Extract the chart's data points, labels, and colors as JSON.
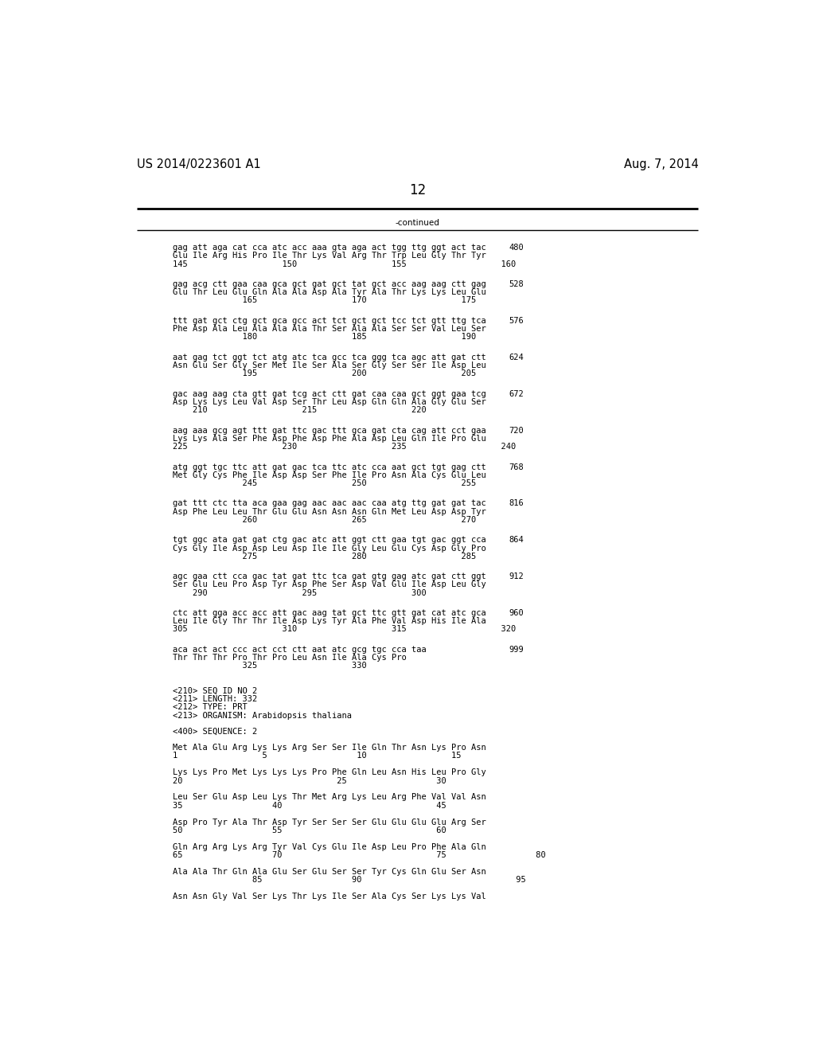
{
  "header_left": "US 2014/0223601 A1",
  "header_right": "Aug. 7, 2014",
  "page_number": "12",
  "continued_label": "-continued",
  "background_color": "#ffffff",
  "text_color": "#000000",
  "font_size": 7.5,
  "header_font_size": 10.5,
  "page_num_font_size": 12,
  "content_blocks": [
    {
      "dna": "gag att aga cat cca atc acc aaa gta aga act tgg ttg ggt act tac",
      "aa": "Glu Ile Arg His Pro Ile Thr Lys Val Arg Thr Trp Leu Gly Thr Tyr",
      "num": "145                   150                   155                   160",
      "idx": "480"
    },
    {
      "dna": "gag acg ctt gaa caa gca gct gat gct tat gct acc aag aag ctt gag",
      "aa": "Glu Thr Leu Glu Gln Ala Ala Asp Ala Tyr Ala Thr Lys Lys Leu Glu",
      "num": "              165                   170                   175",
      "idx": "528"
    },
    {
      "dna": "ttt gat gct ctg gct gca gcc act tct gct gct tcc tct gtt ttg tca",
      "aa": "Phe Asp Ala Leu Ala Ala Ala Thr Ser Ala Ala Ser Ser Val Leu Ser",
      "num": "              180                   185                   190",
      "idx": "576"
    },
    {
      "dna": "aat gag tct ggt tct atg atc tca gcc tca ggg tca agc att gat ctt",
      "aa": "Asn Glu Ser Gly Ser Met Ile Ser Ala Ser Gly Ser Ser Ile Asp Leu",
      "num": "              195                   200                   205",
      "idx": "624"
    },
    {
      "dna": "gac aag aag cta gtt gat tcg act ctt gat caa caa gct ggt gaa tcg",
      "aa": "Asp Lys Lys Leu Val Asp Ser Thr Leu Asp Gln Gln Ala Gly Glu Ser",
      "num": "    210                   215                   220",
      "idx": "672"
    },
    {
      "dna": "aag aaa gcg agt ttt gat ttc gac ttt gca gat cta cag att cct gaa",
      "aa": "Lys Lys Ala Ser Phe Asp Phe Asp Phe Ala Asp Leu Gln Ile Pro Glu",
      "num": "225                   230                   235                   240",
      "idx": "720"
    },
    {
      "dna": "atg ggt tgc ttc att gat gac tca ttc atc cca aat gct tgt gag ctt",
      "aa": "Met Gly Cys Phe Ile Asp Asp Ser Phe Ile Pro Asn Ala Cys Glu Leu",
      "num": "              245                   250                   255",
      "idx": "768"
    },
    {
      "dna": "gat ttt ctc tta aca gaa gag aac aac aac caa atg ttg gat gat tac",
      "aa": "Asp Phe Leu Leu Thr Glu Glu Asn Asn Asn Gln Met Leu Asp Asp Tyr",
      "num": "              260                   265                   270",
      "idx": "816"
    },
    {
      "dna": "tgt ggc ata gat gat ctg gac atc att ggt ctt gaa tgt gac ggt cca",
      "aa": "Cys Gly Ile Asp Asp Leu Asp Ile Ile Gly Leu Glu Cys Asp Gly Pro",
      "num": "              275                   280                   285",
      "idx": "864"
    },
    {
      "dna": "agc gaa ctt cca gac tat gat ttc tca gat gtg gag atc gat ctt ggt",
      "aa": "Ser Glu Leu Pro Asp Tyr Asp Phe Ser Asp Val Glu Ile Asp Leu Gly",
      "num": "    290                   295                   300",
      "idx": "912"
    },
    {
      "dna": "ctc att gga acc acc att gac aag tat gct ttc gtt gat cat atc gca",
      "aa": "Leu Ile Gly Thr Thr Ile Asp Lys Tyr Ala Phe Val Asp His Ile Ala",
      "num": "305                   310                   315                   320",
      "idx": "960"
    },
    {
      "dna": "aca act act ccc act cct ctt aat atc gcg tgc cca taa",
      "aa": "Thr Thr Thr Pro Thr Pro Leu Asn Ile Ala Cys Pro",
      "num": "              325                   330",
      "idx": "999"
    }
  ],
  "seq_info": [
    "<210> SEQ ID NO 2",
    "<211> LENGTH: 332",
    "<212> TYPE: PRT",
    "<213> ORGANISM: Arabidopsis thaliana"
  ],
  "seq_label": "<400> SEQUENCE: 2",
  "aa_blocks": [
    {
      "aa": "Met Ala Glu Arg Lys Lys Arg Ser Ser Ile Gln Thr Asn Lys Pro Asn",
      "num": "1                 5                  10                 15"
    },
    {
      "aa": "Lys Lys Pro Met Lys Lys Lys Pro Phe Gln Leu Asn His Leu Pro Gly",
      "num": "20                               25                  30"
    },
    {
      "aa": "Leu Ser Glu Asp Leu Lys Thr Met Arg Lys Leu Arg Phe Val Val Asn",
      "num": "35                  40                               45"
    },
    {
      "aa": "Asp Pro Tyr Ala Thr Asp Tyr Ser Ser Ser Glu Glu Glu Glu Arg Ser",
      "num": "50                  55                               60"
    },
    {
      "aa": "Gln Arg Arg Lys Arg Tyr Val Cys Glu Ile Asp Leu Pro Phe Ala Gln",
      "num": "65                  70                               75                  80"
    },
    {
      "aa": "Ala Ala Thr Gln Ala Glu Ser Glu Ser Ser Tyr Cys Gln Glu Ser Asn",
      "num": "                85                  90                               95"
    },
    {
      "aa": "Asn Asn Gly Val Ser Lys Thr Lys Ile Ser Ala Cys Ser Lys Lys Val",
      "num": ""
    }
  ]
}
